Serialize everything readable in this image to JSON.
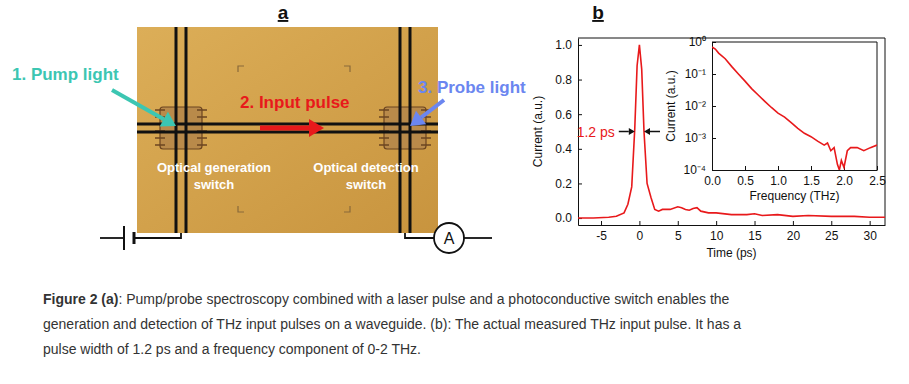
{
  "panel_labels": [
    "a",
    "b"
  ],
  "diagram": {
    "pump": "1. Pump light",
    "pulse": "2. Input pulse",
    "probe": "3. Probe light",
    "generation_switch": [
      "Optical generation",
      "switch"
    ],
    "detection_switch": [
      "Optical detection",
      "switch"
    ],
    "meter": "A"
  },
  "chart_data": [
    {
      "type": "line",
      "color": "#e8191b",
      "x": [
        -8,
        -6,
        -4,
        -3,
        -2,
        -1.5,
        -1,
        -0.6,
        -0.3,
        0,
        0.3,
        0.6,
        1,
        1.5,
        2,
        2.5,
        3,
        4,
        5,
        5.5,
        6,
        6.5,
        7,
        7.5,
        8,
        9,
        10,
        12,
        14,
        15,
        16,
        18,
        20,
        22,
        25,
        28,
        30,
        32
      ],
      "values": [
        0,
        0,
        0.005,
        0.01,
        0.03,
        0.08,
        0.18,
        0.52,
        0.88,
        1.0,
        0.86,
        0.5,
        0.2,
        0.12,
        0.05,
        0.04,
        0.05,
        0.05,
        0.065,
        0.06,
        0.05,
        0.045,
        0.055,
        0.06,
        0.04,
        0.03,
        0.03,
        0.02,
        0.02,
        0.025,
        0.015,
        0.02,
        0.01,
        0.015,
        0.01,
        0.01,
        0.005,
        0.005
      ],
      "xlim": [
        -8,
        32
      ],
      "ylim": [
        -0.04,
        1.04
      ],
      "xticks": [
        -5,
        0,
        5,
        10,
        15,
        20,
        25,
        30
      ],
      "yticks": [
        {
          "value": 0,
          "label": "0.0"
        },
        0.2,
        0.4,
        0.6,
        0.8,
        {
          "value": 1,
          "label": "1.0"
        }
      ],
      "x_label": "Time (ps)",
      "y_label": "Current (a.u.)",
      "annotations": [
        {
          "text": "1.2 ps",
          "x": 0,
          "y": 0.5,
          "width": 1.2
        }
      ]
    },
    {
      "type": "line",
      "color": "#e8191b",
      "log": "y",
      "x": [
        0,
        0.05,
        0.1,
        0.2,
        0.3,
        0.4,
        0.5,
        0.6,
        0.7,
        0.8,
        0.9,
        1.0,
        1.1,
        1.2,
        1.3,
        1.4,
        1.5,
        1.6,
        1.7,
        1.75,
        1.8,
        1.85,
        1.9,
        1.93,
        1.96,
        2.0,
        2.05,
        2.1,
        2.2,
        2.3,
        2.4,
        2.5
      ],
      "values": [
        0.7,
        0.6,
        0.45,
        0.3,
        0.17,
        0.1,
        0.06,
        0.035,
        0.022,
        0.014,
        0.009,
        0.006,
        0.0045,
        0.003,
        0.002,
        0.0014,
        0.0011,
        0.0008,
        0.0006,
        0.0007,
        0.0004,
        0.0005,
        0.00015,
        0.0001,
        0.0002,
        0.00012,
        0.0004,
        0.0005,
        0.0005,
        0.0004,
        0.0005,
        0.0006
      ],
      "xlim": [
        0,
        2.5
      ],
      "ylim": [
        0.0001,
        1
      ],
      "xticks": [
        {
          "value": 0,
          "label": "0.0"
        },
        0.5,
        {
          "value": 1,
          "label": "1.0"
        },
        1.5,
        {
          "value": 2,
          "label": "2.0"
        },
        2.5
      ],
      "yticks": [
        {
          "value": 1,
          "label": "10⁰"
        },
        {
          "value": 0.1,
          "label": "10⁻¹"
        },
        {
          "value": 0.01,
          "label": "10⁻²"
        },
        {
          "value": 0.001,
          "label": "10⁻³"
        },
        {
          "value": 0.0001,
          "label": "10⁻⁴"
        }
      ],
      "x_label": "Frequency (THz)",
      "y_label": "Current (a.u.)"
    }
  ],
  "caption": {
    "label": "Figure 2 (a)",
    "lines": [
      ": Pump/probe spectroscopy combined with a laser pulse and a photoconductive switch enables the",
      "generation and detection of THz input pulses on a waveguide. (b): The actual measured THz input pulse. It has a",
      "pulse width of 1.2 ps and a frequency component of 0-2 THz."
    ]
  }
}
